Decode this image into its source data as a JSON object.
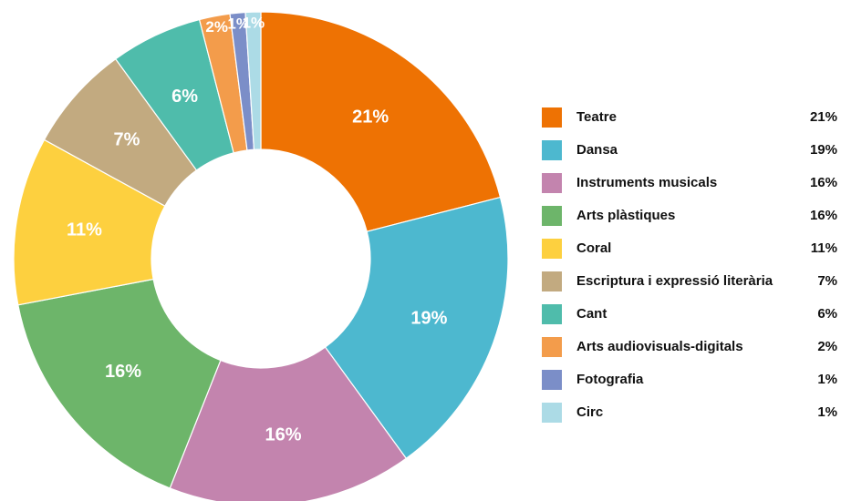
{
  "chart_data": {
    "type": "donut",
    "categories": [
      "Teatre",
      "Dansa",
      "Instruments musicals",
      "Arts plàstiques",
      "Coral",
      "Escriptura i expressió literària",
      "Cant",
      "Arts audiovisuals-digitals",
      "Fotografia",
      "Circ"
    ],
    "values": [
      21,
      19,
      16,
      16,
      11,
      7,
      6,
      2,
      1,
      1
    ],
    "value_labels": [
      "21%",
      "19%",
      "16%",
      "16%",
      "11%",
      "7%",
      "6%",
      "2%",
      "1%",
      "1%"
    ],
    "colors": [
      "#ee7203",
      "#4db8cf",
      "#c384ae",
      "#6db56a",
      "#fdd03f",
      "#c2aa80",
      "#4fbcab",
      "#f39c4b",
      "#7b8ec8",
      "#acdbe6"
    ],
    "legend": "right"
  }
}
